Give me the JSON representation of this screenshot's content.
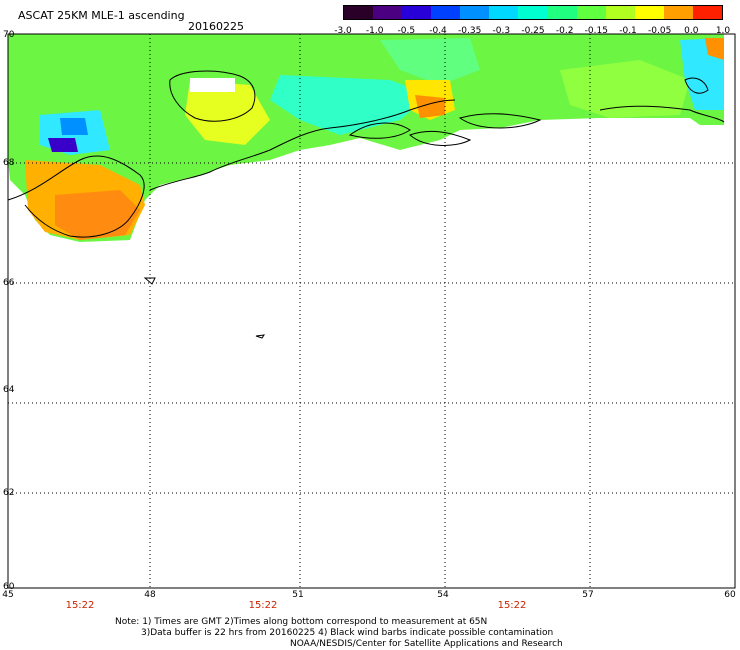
{
  "header": {
    "title": "ASCAT 25KM MLE-1 ascending",
    "date": "20160225"
  },
  "colorbar": {
    "labels": [
      "-3.0",
      "-1.0",
      "-0.5",
      "-0.4",
      "-0.35",
      "-0.3",
      "-0.25",
      "-0.2",
      "-0.15",
      "-0.1",
      "-0.05",
      "0.0",
      "1.0"
    ],
    "colors": [
      "#2a0028",
      "#4b0082",
      "#2800d8",
      "#0040ff",
      "#0090ff",
      "#00d8ff",
      "#00ffd0",
      "#20ff80",
      "#60ff40",
      "#b0ff20",
      "#ffff00",
      "#ffa000",
      "#ff2000"
    ]
  },
  "axes": {
    "lat_labels": [
      "70",
      "68",
      "66",
      "64",
      "62",
      "60"
    ],
    "lon_labels": [
      "45",
      "48",
      "51",
      "54",
      "57",
      "60"
    ]
  },
  "times": [
    "15:22",
    "15:22",
    "15:22"
  ],
  "notes": {
    "line1": "Note: 1) Times are GMT 2)Times along bottom correspond to measurement at 65N",
    "line2": "3)Data buffer is 22 hrs from 20160225 4) Black wind barbs indicate possible contamination",
    "line3": "NOAA/NESDIS/Center for Satellite Applications and Research"
  }
}
